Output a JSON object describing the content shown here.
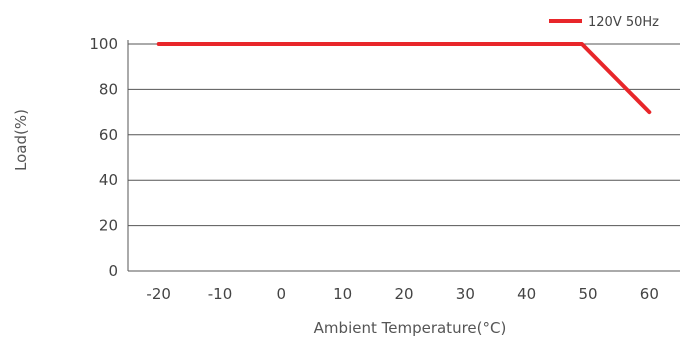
{
  "chart_data": {
    "type": "line",
    "title": "",
    "xlabel": "Ambient Temperature(°C)",
    "ylabel": "Load(%)",
    "xlim": [
      -25,
      65
    ],
    "ylim": [
      0,
      100
    ],
    "xticks": [
      -20,
      -10,
      0,
      10,
      20,
      30,
      40,
      50,
      60
    ],
    "yticks": [
      0,
      20,
      40,
      60,
      80,
      100
    ],
    "grid": "horizontal",
    "legend_position": "top-right",
    "series": [
      {
        "name": "120V  50Hz",
        "color": "#e8262a",
        "x": [
          -20,
          49,
          60
        ],
        "y": [
          100,
          100,
          70
        ]
      }
    ]
  }
}
